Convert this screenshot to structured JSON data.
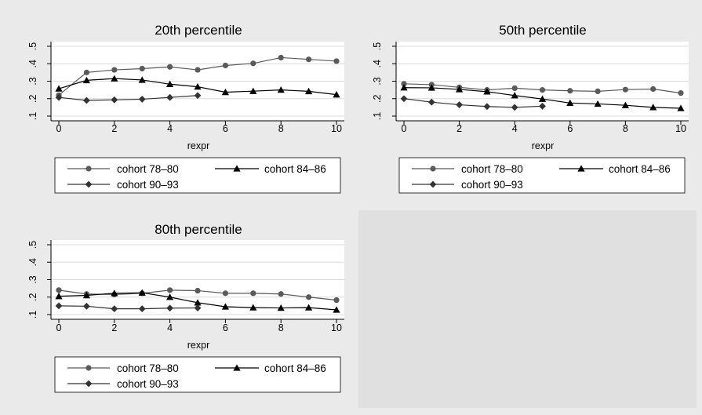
{
  "background_color": "#eaeaea",
  "plot_background_color": "#ffffff",
  "series_colors": {
    "cohort_78_80": "#5a5a5a",
    "cohort_84_86": "#000000",
    "cohort_90_93": "#333333"
  },
  "legend_labels": [
    "cohort 78–80",
    "cohort 84–86",
    "cohort 90–93"
  ],
  "chart_data": [
    {
      "type": "line",
      "title": "20th percentile",
      "xlabel": "rexpr",
      "ylabel": "",
      "xlim": [
        0,
        10
      ],
      "ylim": [
        0.1,
        0.5
      ],
      "xticks": [
        "0",
        "2",
        "4",
        "6",
        "8",
        "10"
      ],
      "yticks": [
        ".1",
        ".2",
        ".3",
        ".4",
        ".5"
      ],
      "grid": true,
      "legend_position": "bottom",
      "series": [
        {
          "name": "cohort 78–80",
          "marker": "circle",
          "x": [
            0,
            1,
            2,
            3,
            4,
            5,
            6,
            7,
            8,
            9,
            10
          ],
          "values": [
            0.22,
            0.35,
            0.365,
            0.372,
            0.382,
            0.365,
            0.39,
            0.402,
            0.435,
            0.425,
            0.415
          ]
        },
        {
          "name": "cohort 84–86",
          "marker": "triangle",
          "x": [
            0,
            1,
            2,
            3,
            4,
            5,
            6,
            7,
            8,
            9,
            10
          ],
          "values": [
            0.257,
            0.305,
            0.315,
            0.307,
            0.283,
            0.268,
            0.237,
            0.243,
            0.25,
            0.242,
            0.223
          ]
        },
        {
          "name": "cohort 90–93",
          "marker": "diamond",
          "x": [
            0,
            1,
            2,
            3,
            4,
            5
          ],
          "values": [
            0.207,
            0.19,
            0.193,
            0.197,
            0.207,
            0.218
          ]
        }
      ]
    },
    {
      "type": "line",
      "title": "50th percentile",
      "xlabel": "rexpr",
      "ylabel": "",
      "xlim": [
        0,
        10
      ],
      "ylim": [
        0.1,
        0.5
      ],
      "xticks": [
        "0",
        "2",
        "4",
        "6",
        "8",
        "10"
      ],
      "yticks": [
        ".1",
        ".2",
        ".3",
        ".4",
        ".5"
      ],
      "grid": true,
      "legend_position": "bottom",
      "series": [
        {
          "name": "cohort 78–80",
          "marker": "circle",
          "x": [
            0,
            1,
            2,
            3,
            4,
            5,
            6,
            7,
            8,
            9,
            10
          ],
          "values": [
            0.285,
            0.28,
            0.265,
            0.25,
            0.26,
            0.25,
            0.245,
            0.242,
            0.252,
            0.255,
            0.232
          ]
        },
        {
          "name": "cohort 84–86",
          "marker": "triangle",
          "x": [
            0,
            1,
            2,
            3,
            4,
            5,
            6,
            7,
            8,
            9,
            10
          ],
          "values": [
            0.263,
            0.262,
            0.253,
            0.24,
            0.218,
            0.198,
            0.175,
            0.17,
            0.162,
            0.15,
            0.145
          ]
        },
        {
          "name": "cohort 90–93",
          "marker": "diamond",
          "x": [
            0,
            1,
            2,
            3,
            4,
            5
          ],
          "values": [
            0.2,
            0.18,
            0.165,
            0.155,
            0.15,
            0.157
          ]
        }
      ]
    },
    {
      "type": "line",
      "title": "80th percentile",
      "xlabel": "rexpr",
      "ylabel": "",
      "xlim": [
        0,
        10
      ],
      "ylim": [
        0.1,
        0.5
      ],
      "xticks": [
        "0",
        "2",
        "4",
        "6",
        "8",
        "10"
      ],
      "yticks": [
        ".1",
        ".2",
        ".3",
        ".4",
        ".5"
      ],
      "grid": true,
      "legend_position": "bottom",
      "series": [
        {
          "name": "cohort 78–80",
          "marker": "circle",
          "x": [
            0,
            1,
            2,
            3,
            4,
            5,
            6,
            7,
            8,
            9,
            10
          ],
          "values": [
            0.24,
            0.218,
            0.215,
            0.222,
            0.24,
            0.237,
            0.222,
            0.222,
            0.218,
            0.2,
            0.183
          ]
        },
        {
          "name": "cohort 84–86",
          "marker": "triangle",
          "x": [
            0,
            1,
            2,
            3,
            4,
            5,
            6,
            7,
            8,
            9,
            10
          ],
          "values": [
            0.205,
            0.21,
            0.222,
            0.225,
            0.2,
            0.168,
            0.145,
            0.14,
            0.138,
            0.14,
            0.127
          ]
        },
        {
          "name": "cohort 90–93",
          "marker": "diamond",
          "x": [
            0,
            1,
            2,
            3,
            4,
            5
          ],
          "values": [
            0.15,
            0.148,
            0.133,
            0.133,
            0.137,
            0.138
          ]
        }
      ]
    }
  ]
}
